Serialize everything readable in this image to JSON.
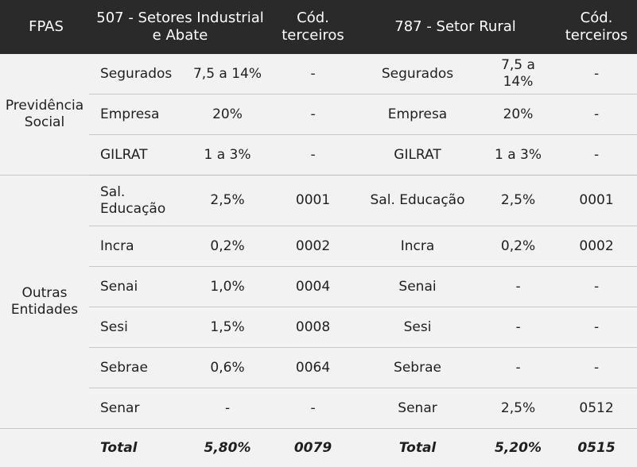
{
  "header": {
    "fpas": "FPAS",
    "col_industrial": "507 - Setores Industrial e Abate",
    "col_cod1": "Cód. terceiros",
    "col_rural": "787 - Setor Rural",
    "col_cod2": "Cód. terceiros"
  },
  "groups": {
    "previdencia": "Previdência Social",
    "outras": "Outras Entidades"
  },
  "rows": [
    {
      "label_a": "Segurados",
      "val_a": "7,5 a 14%",
      "cod_a": "-",
      "label_b": "Segurados",
      "val_b": "7,5 a 14%",
      "cod_b": "-"
    },
    {
      "label_a": "Empresa",
      "val_a": "20%",
      "cod_a": "-",
      "label_b": "Empresa",
      "val_b": "20%",
      "cod_b": "-"
    },
    {
      "label_a": "GILRAT",
      "val_a": "1 a 3%",
      "cod_a": "-",
      "label_b": "GILRAT",
      "val_b": "1 a 3%",
      "cod_b": "-"
    },
    {
      "label_a": "Sal. Educação",
      "val_a": "2,5%",
      "cod_a": "0001",
      "label_b": "Sal. Educação",
      "val_b": "2,5%",
      "cod_b": "0001"
    },
    {
      "label_a": "Incra",
      "val_a": "0,2%",
      "cod_a": "0002",
      "label_b": "Incra",
      "val_b": "0,2%",
      "cod_b": "0002"
    },
    {
      "label_a": "Senai",
      "val_a": "1,0%",
      "cod_a": "0004",
      "label_b": "Senai",
      "val_b": "-",
      "cod_b": "-"
    },
    {
      "label_a": "Sesi",
      "val_a": "1,5%",
      "cod_a": "0008",
      "label_b": "Sesi",
      "val_b": "-",
      "cod_b": "-"
    },
    {
      "label_a": "Sebrae",
      "val_a": "0,6%",
      "cod_a": "0064",
      "label_b": "Sebrae",
      "val_b": "-",
      "cod_b": "-"
    },
    {
      "label_a": "Senar",
      "val_a": "-",
      "cod_a": "-",
      "label_b": "Senar",
      "val_b": "2,5%",
      "cod_b": "0512"
    }
  ],
  "total": {
    "label_a": "Total",
    "val_a": "5,80%",
    "cod_a": "0079",
    "label_b": "Total",
    "val_b": "5,20%",
    "cod_b": "0515"
  }
}
